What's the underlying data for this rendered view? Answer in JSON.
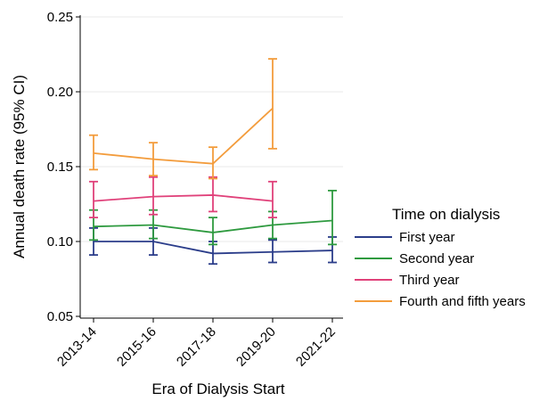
{
  "chart_data": {
    "type": "line",
    "xlabel": "Era of Dialysis Start",
    "ylabel": "Annual death rate (95% CI)",
    "categories": [
      "2013-14",
      "2015-16",
      "2017-18",
      "2019-20",
      "2021-22"
    ],
    "ylim": [
      0.05,
      0.25
    ],
    "yticks": [
      0.05,
      0.1,
      0.15,
      0.2,
      0.25
    ],
    "ytick_labels": [
      "0.05",
      "0.10",
      "0.15",
      "0.20",
      "0.25"
    ],
    "grid": true,
    "legend": {
      "title": "Time on dialysis",
      "placement": "right"
    },
    "series": [
      {
        "name": "First year",
        "color": "#2b3d8a",
        "values": [
          0.1,
          0.1,
          0.092,
          0.093,
          0.094
        ],
        "ci_low": [
          0.091,
          0.091,
          0.085,
          0.086,
          0.086
        ],
        "ci_high": [
          0.109,
          0.109,
          0.1,
          0.101,
          0.103
        ]
      },
      {
        "name": "Second year",
        "color": "#2e9a3f",
        "values": [
          0.11,
          0.111,
          0.106,
          0.111,
          0.114
        ],
        "ci_low": [
          0.101,
          0.102,
          0.098,
          0.102,
          0.098
        ],
        "ci_high": [
          0.121,
          0.121,
          0.116,
          0.12,
          0.134
        ]
      },
      {
        "name": "Third year",
        "color": "#e0417a",
        "values": [
          0.127,
          0.13,
          0.131,
          0.127,
          null
        ],
        "ci_low": [
          0.116,
          0.118,
          0.12,
          0.116,
          null
        ],
        "ci_high": [
          0.14,
          0.143,
          0.143,
          0.14,
          null
        ]
      },
      {
        "name": "Fourth and fifth years",
        "color": "#f39c3c",
        "values": [
          0.159,
          0.155,
          0.152,
          0.189,
          null
        ],
        "ci_low": [
          0.148,
          0.144,
          0.142,
          0.162,
          null
        ],
        "ci_high": [
          0.171,
          0.166,
          0.163,
          0.222,
          null
        ]
      }
    ]
  }
}
